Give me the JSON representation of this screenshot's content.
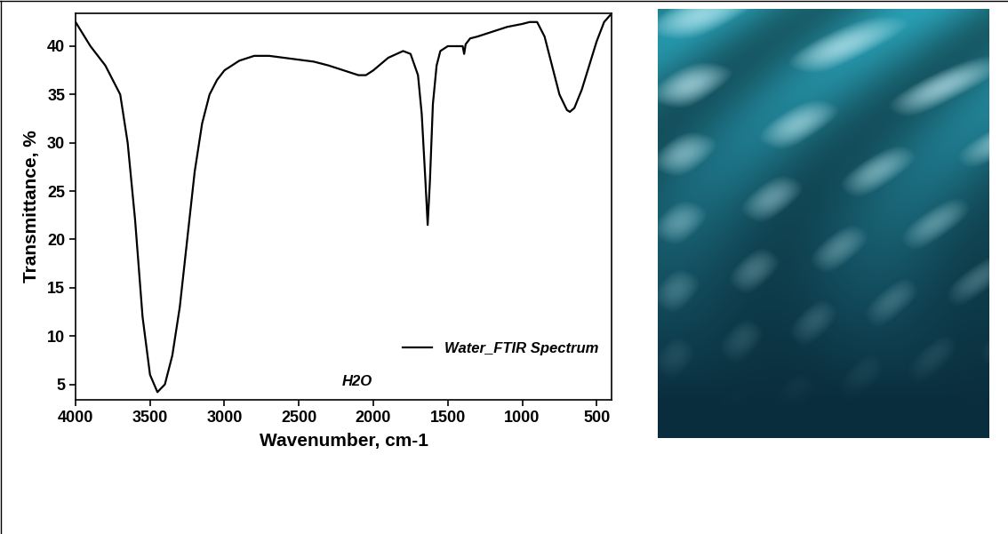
{
  "chart_data": {
    "type": "line",
    "xlabel": "Wavenumber, cm-1",
    "ylabel": "Transmittance, %",
    "x": [
      4000,
      3900,
      3800,
      3700,
      3650,
      3600,
      3550,
      3500,
      3450,
      3400,
      3350,
      3300,
      3250,
      3200,
      3150,
      3100,
      3050,
      3000,
      2900,
      2800,
      2700,
      2600,
      2500,
      2400,
      2300,
      2200,
      2100,
      2050,
      2000,
      1900,
      1800,
      1750,
      1700,
      1675,
      1650,
      1635,
      1620,
      1600,
      1575,
      1550,
      1500,
      1450,
      1400,
      1390,
      1380,
      1350,
      1300,
      1200,
      1100,
      1000,
      950,
      900,
      850,
      800,
      750,
      700,
      680,
      650,
      600,
      550,
      500,
      450,
      410
    ],
    "series": [
      {
        "name": "Water_FTIR Spectrum",
        "color": "#000000",
        "values": [
          42.5,
          40.0,
          38.0,
          35.0,
          30.0,
          22.0,
          12.0,
          6.0,
          4.2,
          5.0,
          8.0,
          13.0,
          20.0,
          27.0,
          32.0,
          35.0,
          36.5,
          37.5,
          38.5,
          39.0,
          39.0,
          38.8,
          38.6,
          38.4,
          38.0,
          37.5,
          37.0,
          37.0,
          37.5,
          38.8,
          39.5,
          39.2,
          37.0,
          33.0,
          26.0,
          21.5,
          26.0,
          34.0,
          38.0,
          39.5,
          40.0,
          40.0,
          40.0,
          39.2,
          40.2,
          40.8,
          41.0,
          41.5,
          42.0,
          42.3,
          42.5,
          42.5,
          41.0,
          38.0,
          35.0,
          33.4,
          33.2,
          33.6,
          35.5,
          38.0,
          40.5,
          42.5,
          43.2
        ]
      }
    ],
    "xlim": [
      4000,
      400
    ],
    "ylim": [
      3.4,
      43.4
    ],
    "xticks": [
      4000,
      3500,
      3000,
      2500,
      2000,
      1500,
      1000,
      500
    ],
    "yticks": [
      5,
      10,
      15,
      20,
      25,
      30,
      35,
      40
    ],
    "legend": "lower right",
    "annotations": [
      "H2O"
    ],
    "grid": false
  }
}
